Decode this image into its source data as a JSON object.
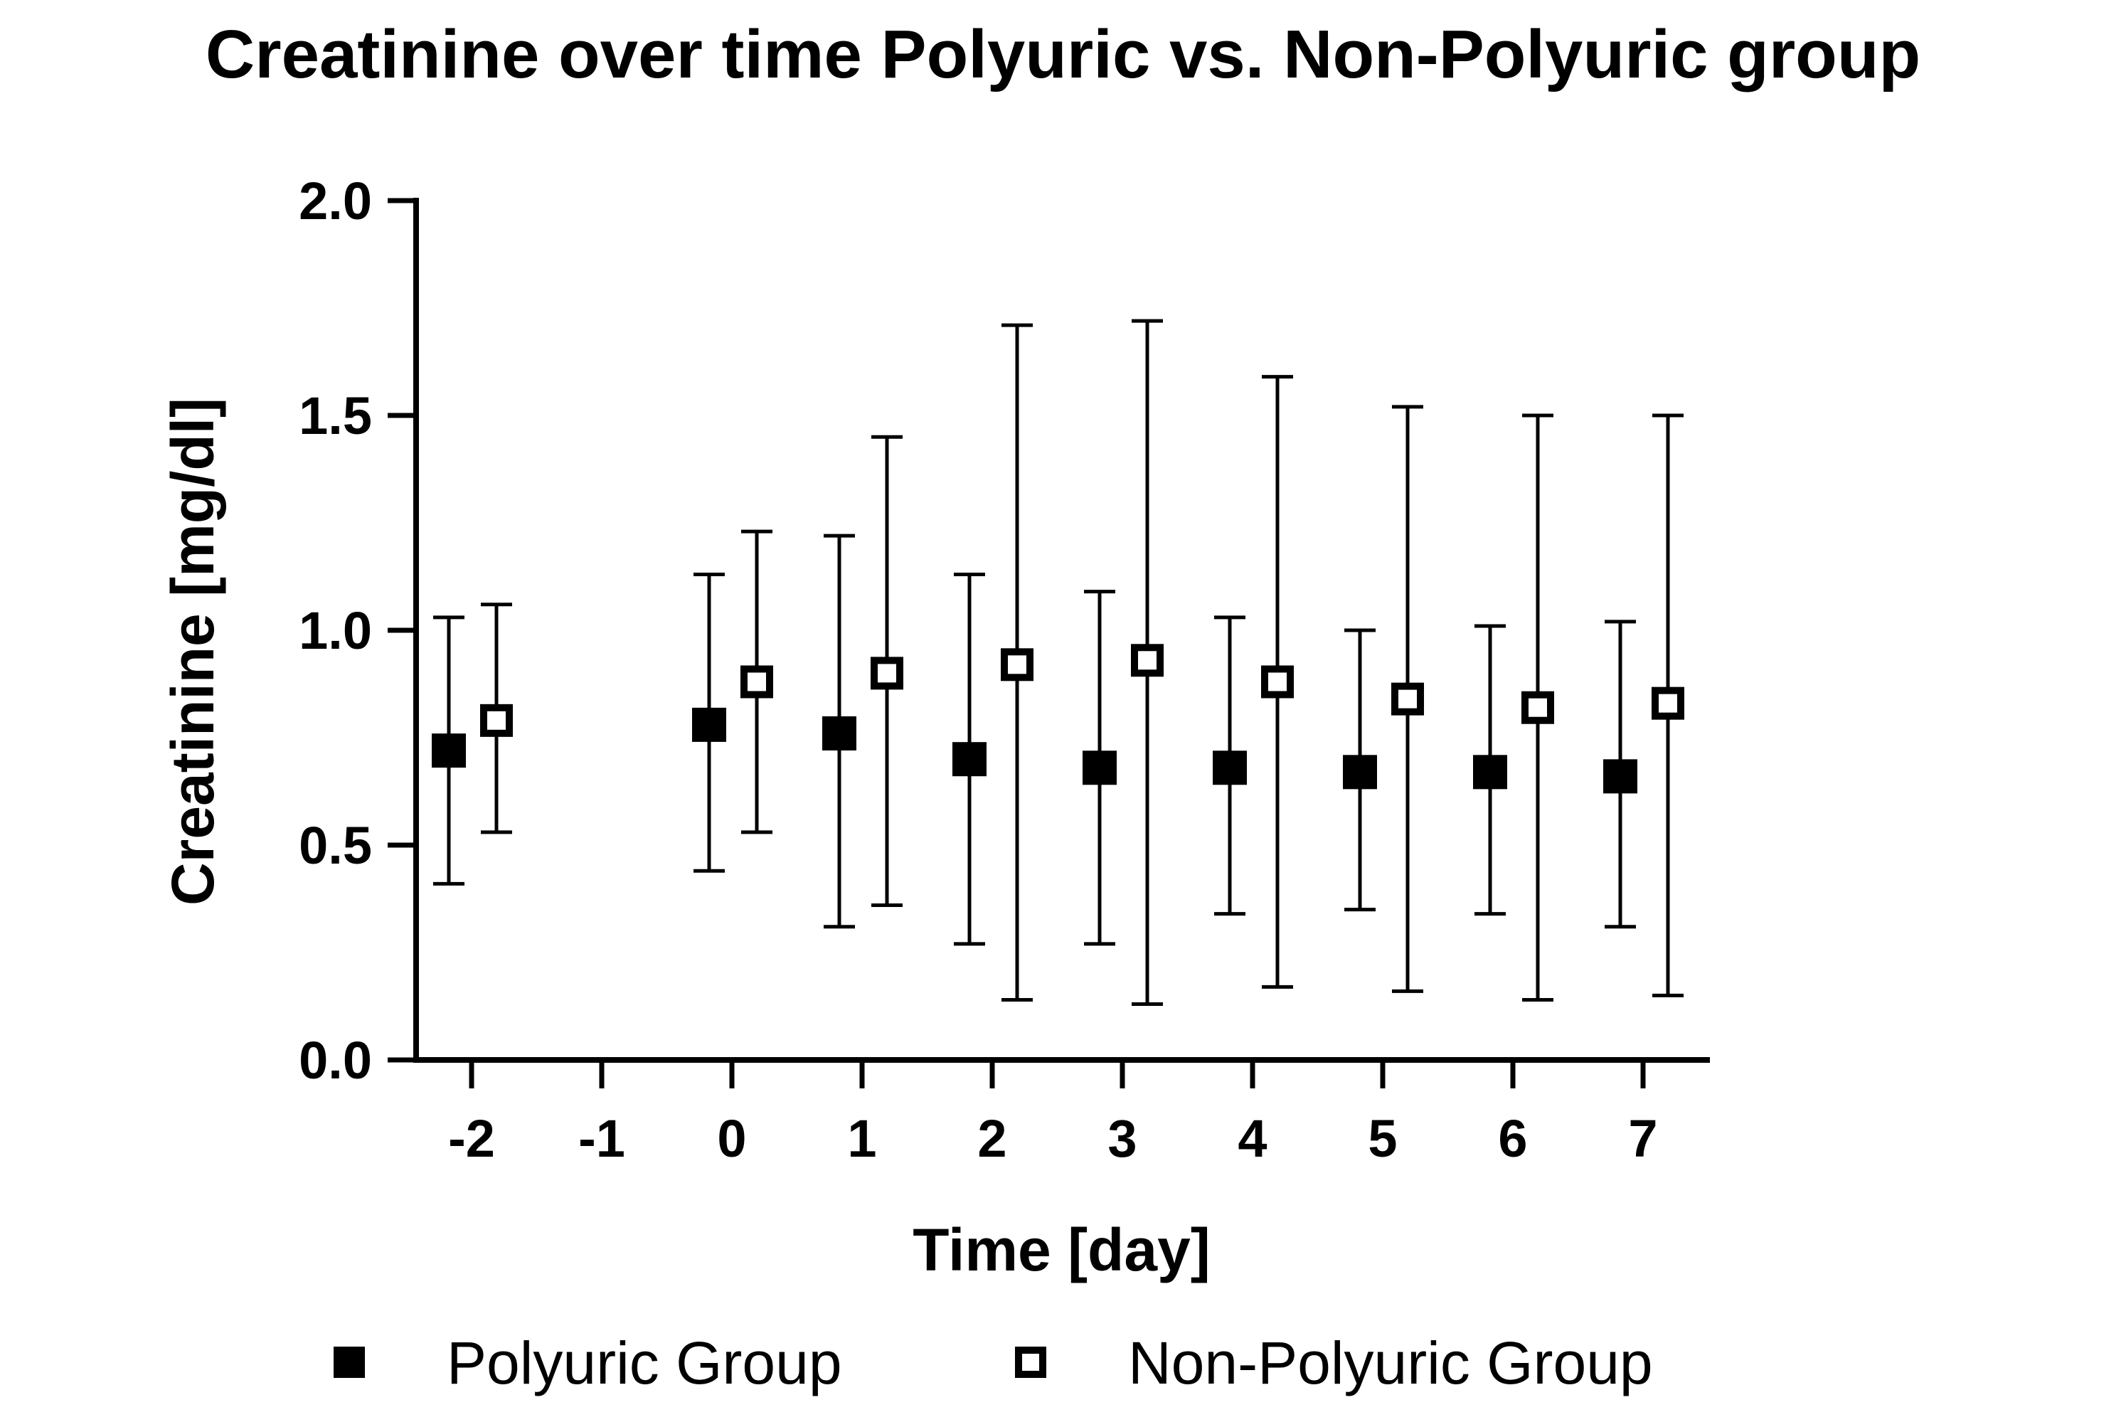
{
  "chart_data": {
    "type": "scatter",
    "title": "Creatinine over time Polyuric vs. Non-Polyuric group",
    "xlabel": "Time [day]",
    "ylabel": "Creatinine [mg/dl]",
    "ylim": [
      0,
      2.0
    ],
    "yticks": [
      0.0,
      0.5,
      1.0,
      1.5,
      2.0
    ],
    "ytick_labels": [
      "0.0",
      "0.5",
      "1.0",
      "1.5",
      "2.0"
    ],
    "categories": [
      "-2",
      "-1",
      "0",
      "1",
      "2",
      "3",
      "4",
      "5",
      "6",
      "7"
    ],
    "legend_position": "bottom",
    "grid": false,
    "series": [
      {
        "name": "Polyuric Group",
        "marker": "filled-square",
        "color": "#000000",
        "x": [
          "-2",
          "0",
          "1",
          "2",
          "3",
          "4",
          "5",
          "6",
          "7"
        ],
        "mean": [
          0.72,
          0.78,
          0.76,
          0.7,
          0.68,
          0.68,
          0.67,
          0.67,
          0.66
        ],
        "lower": [
          0.41,
          0.44,
          0.31,
          0.27,
          0.27,
          0.34,
          0.35,
          0.34,
          0.31
        ],
        "upper": [
          1.03,
          1.13,
          1.22,
          1.13,
          1.09,
          1.03,
          1.0,
          1.01,
          1.02
        ]
      },
      {
        "name": "Non-Polyuric Group",
        "marker": "open-square",
        "color": "#000000",
        "x": [
          "-2",
          "0",
          "1",
          "2",
          "3",
          "4",
          "5",
          "6",
          "7"
        ],
        "mean": [
          0.79,
          0.88,
          0.9,
          0.92,
          0.93,
          0.88,
          0.84,
          0.82,
          0.83
        ],
        "lower": [
          0.53,
          0.53,
          0.36,
          0.14,
          0.13,
          0.17,
          0.16,
          0.14,
          0.15
        ],
        "upper": [
          1.06,
          1.23,
          1.45,
          1.71,
          1.72,
          1.59,
          1.52,
          1.5,
          1.5
        ]
      }
    ]
  }
}
